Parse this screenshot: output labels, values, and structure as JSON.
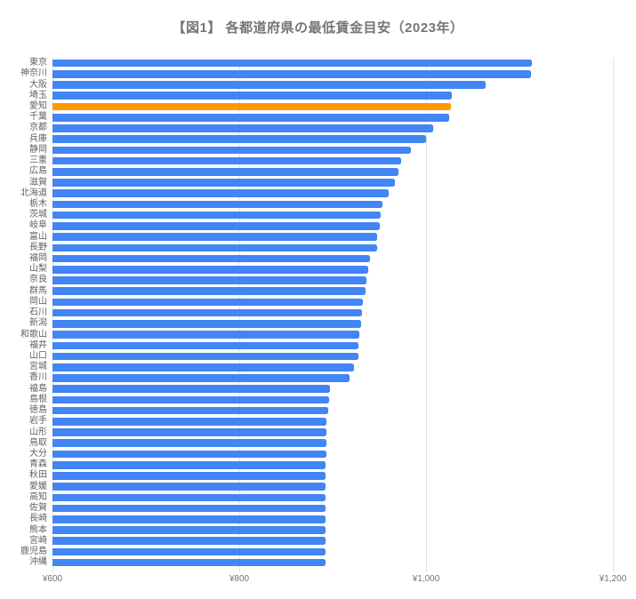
{
  "title": "【図1】 各都道府県の最低賃金目安（2023年）",
  "chart_data": {
    "type": "bar",
    "orientation": "horizontal",
    "title": "【図1】 各都道府県の最低賃金目安（2023年）",
    "xlabel": "",
    "ylabel": "",
    "unit": "yen",
    "xlim": [
      600,
      1200
    ],
    "grid": true,
    "legend": "none",
    "bar_color": "#4285f4",
    "highlight_color": "#ff9900",
    "highlight_category": "愛知",
    "highlight_index": 4,
    "x_ticks": [
      {
        "value": 600,
        "label": "¥600"
      },
      {
        "value": 800,
        "label": "¥800"
      },
      {
        "value": 1000,
        "label": "¥1,000"
      },
      {
        "value": 1200,
        "label": "¥1,200"
      }
    ],
    "categories": [
      "東京",
      "神奈川",
      "大阪",
      "埼玉",
      "愛知",
      "千葉",
      "京都",
      "兵庫",
      "静岡",
      "三重",
      "広島",
      "滋賀",
      "北海道",
      "栃木",
      "茨城",
      "岐阜",
      "富山",
      "長野",
      "福岡",
      "山梨",
      "奈良",
      "群馬",
      "岡山",
      "石川",
      "新潟",
      "和歌山",
      "福井",
      "山口",
      "宮城",
      "香川",
      "福島",
      "島根",
      "徳島",
      "岩手",
      "山形",
      "鳥取",
      "大分",
      "青森",
      "秋田",
      "愛媛",
      "高知",
      "佐賀",
      "長崎",
      "熊本",
      "宮崎",
      "鹿児島",
      "沖縄"
    ],
    "values": [
      1113,
      1112,
      1064,
      1028,
      1027,
      1025,
      1008,
      1000,
      984,
      973,
      970,
      967,
      960,
      953,
      951,
      950,
      948,
      948,
      940,
      938,
      936,
      935,
      932,
      931,
      930,
      929,
      928,
      928,
      923,
      918,
      897,
      896,
      895,
      893,
      893,
      893,
      893,
      892,
      892,
      892,
      892,
      892,
      892,
      892,
      892,
      892,
      892
    ]
  }
}
